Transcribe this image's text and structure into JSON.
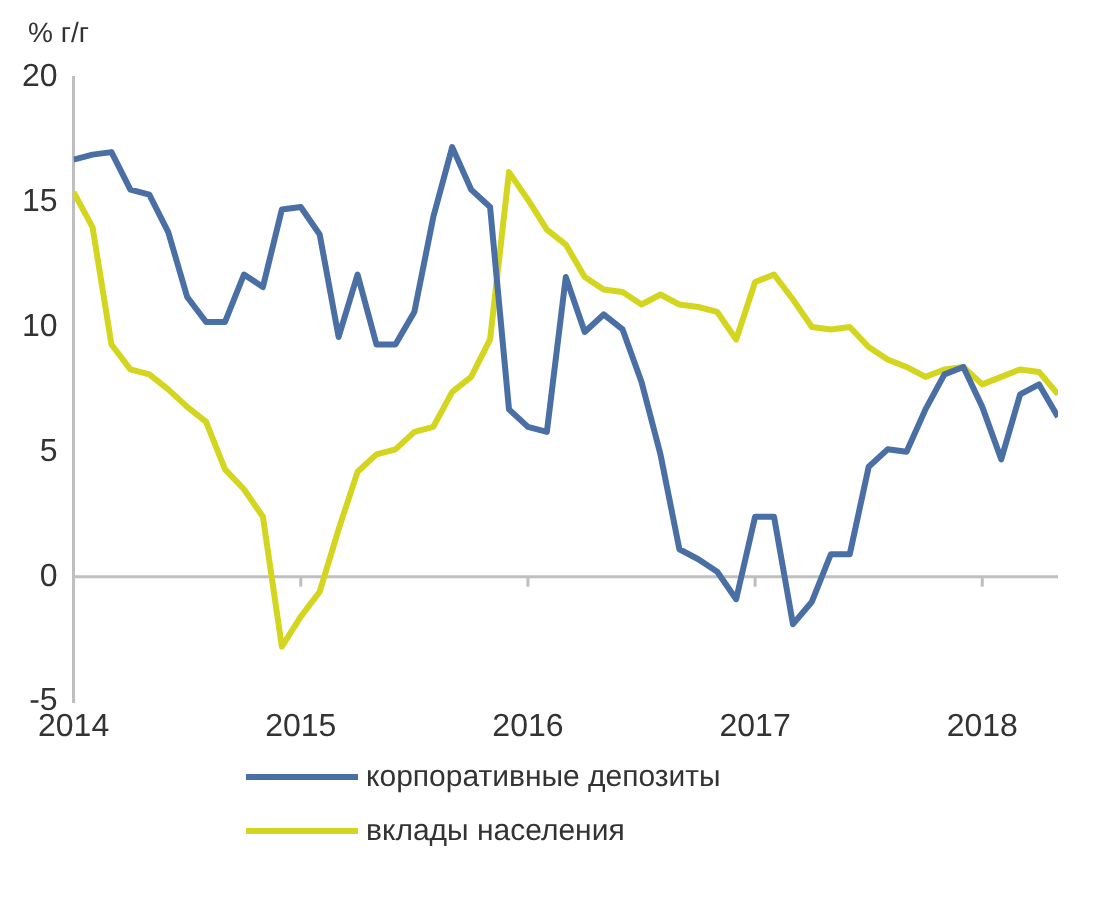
{
  "chart_data": {
    "type": "line",
    "ylabel": "% г/г",
    "x": [
      "2014-01",
      "2014-02",
      "2014-03",
      "2014-04",
      "2014-05",
      "2014-06",
      "2014-07",
      "2014-08",
      "2014-09",
      "2014-10",
      "2014-11",
      "2014-12",
      "2015-01",
      "2015-02",
      "2015-03",
      "2015-04",
      "2015-05",
      "2015-06",
      "2015-07",
      "2015-08",
      "2015-09",
      "2015-10",
      "2015-11",
      "2015-12",
      "2016-01",
      "2016-02",
      "2016-03",
      "2016-04",
      "2016-05",
      "2016-06",
      "2016-07",
      "2016-08",
      "2016-09",
      "2016-10",
      "2016-11",
      "2016-12",
      "2017-01",
      "2017-02",
      "2017-03",
      "2017-04",
      "2017-05",
      "2017-06",
      "2017-07",
      "2017-08",
      "2017-09",
      "2017-10",
      "2017-11",
      "2017-12",
      "2018-01",
      "2018-02",
      "2018-03",
      "2018-04",
      "2018-05"
    ],
    "series": [
      {
        "name": "корпоративные депозиты",
        "color": "#4a6fa5",
        "values": [
          16.7,
          16.9,
          17.0,
          15.5,
          15.3,
          13.8,
          11.2,
          10.2,
          10.2,
          12.1,
          11.6,
          14.7,
          14.8,
          13.7,
          9.6,
          12.1,
          9.3,
          9.3,
          10.6,
          14.4,
          17.2,
          15.5,
          14.8,
          6.7,
          6.0,
          5.8,
          12.0,
          9.8,
          10.5,
          9.9,
          7.8,
          4.9,
          1.1,
          0.7,
          0.2,
          -0.9,
          2.4,
          2.4,
          -1.9,
          -1.0,
          0.9,
          0.9,
          4.4,
          5.1,
          5.0,
          6.7,
          8.1,
          8.4,
          6.8,
          4.7,
          7.3,
          7.7,
          6.4
        ]
      },
      {
        "name": "вклады населения",
        "color": "#d4d51e",
        "values": [
          15.4,
          14.0,
          9.3,
          8.3,
          8.1,
          7.5,
          6.8,
          6.2,
          4.3,
          3.5,
          2.4,
          -2.8,
          -1.6,
          -0.6,
          1.9,
          4.2,
          4.9,
          5.1,
          5.8,
          6.0,
          7.4,
          8.0,
          9.5,
          16.2,
          15.1,
          13.9,
          13.3,
          12.0,
          11.5,
          11.4,
          10.9,
          11.3,
          10.9,
          10.8,
          10.6,
          9.5,
          11.8,
          12.1,
          11.1,
          10.0,
          9.9,
          10.0,
          9.2,
          8.7,
          8.4,
          8.0,
          8.3,
          8.4,
          7.7,
          8.0,
          8.3,
          8.2,
          7.3
        ]
      }
    ],
    "xlim": [
      "2014-01",
      "2018-05"
    ],
    "xticks": [
      "2014",
      "2015",
      "2016",
      "2017",
      "2018"
    ],
    "ylim": [
      -5,
      20
    ],
    "yticks": [
      -5,
      0,
      5,
      10,
      15,
      20
    ],
    "ref_lines": [
      {
        "axis": "y",
        "value": 0,
        "color": "#bfbfbf"
      }
    ],
    "grid": false,
    "legend": "bottom",
    "marker": "none",
    "line_style": "solid"
  }
}
